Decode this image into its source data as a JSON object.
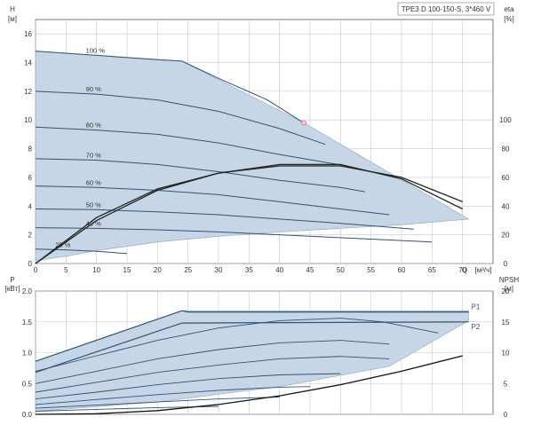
{
  "chart_data": [
    {
      "type": "line",
      "title": "TPE3 D 100-150-S, 3*460 V",
      "ylabel_left": "H",
      "ylabel_left_unit": "[м]",
      "ylabel_right": "eta",
      "ylabel_right_unit": "[%]",
      "xlabel": "Q",
      "xlabel_unit": "[м³/ч]",
      "xlim": [
        0,
        75
      ],
      "ylim_left": [
        0,
        17
      ],
      "ylim_right": [
        0,
        170
      ],
      "x_ticks": [
        0,
        5,
        10,
        15,
        20,
        25,
        30,
        35,
        40,
        45,
        50,
        55,
        60,
        65,
        70
      ],
      "y_ticks_left": [
        0,
        2,
        4,
        6,
        8,
        10,
        12,
        14,
        16
      ],
      "y_ticks_right": [
        0,
        20,
        40,
        60,
        80,
        100
      ],
      "grid": true,
      "operating_envelope": [
        [
          0,
          14.8
        ],
        [
          24,
          14.1
        ],
        [
          44,
          9.8
        ],
        [
          71,
          3.1
        ],
        [
          71,
          3.1
        ],
        [
          60,
          2.7
        ],
        [
          40,
          2.2
        ],
        [
          30,
          1.9
        ],
        [
          20,
          1.5
        ],
        [
          10,
          0.9
        ],
        [
          5,
          0.5
        ],
        [
          0,
          0.2
        ]
      ],
      "speed_curves": [
        {
          "label": "100 %",
          "x": [
            0,
            10,
            20,
            24,
            30,
            38,
            44
          ],
          "y": [
            14.8,
            14.5,
            14.2,
            14.1,
            12.9,
            11.4,
            9.8
          ]
        },
        {
          "label": "90 %",
          "x": [
            0,
            10,
            20,
            30,
            40,
            47.5
          ],
          "y": [
            12.0,
            11.8,
            11.4,
            10.6,
            9.4,
            8.3
          ]
        },
        {
          "label": "80 %",
          "x": [
            0,
            10,
            20,
            30,
            40,
            51
          ],
          "y": [
            9.5,
            9.3,
            9.0,
            8.4,
            7.6,
            6.8
          ]
        },
        {
          "label": "70 %",
          "x": [
            0,
            10,
            20,
            30,
            40,
            50,
            54
          ],
          "y": [
            7.3,
            7.2,
            6.9,
            6.4,
            5.8,
            5.3,
            5.0
          ]
        },
        {
          "label": "60 %",
          "x": [
            0,
            10,
            20,
            30,
            40,
            50,
            58
          ],
          "y": [
            5.4,
            5.3,
            5.1,
            4.8,
            4.3,
            3.8,
            3.4
          ]
        },
        {
          "label": "50 %",
          "x": [
            0,
            10,
            20,
            30,
            40,
            50,
            62
          ],
          "y": [
            3.8,
            3.75,
            3.6,
            3.4,
            3.1,
            2.8,
            2.4
          ]
        },
        {
          "label": "40 %",
          "x": [
            0,
            10,
            20,
            30,
            40,
            50,
            65
          ],
          "y": [
            2.5,
            2.45,
            2.35,
            2.2,
            2.0,
            1.8,
            1.5
          ]
        },
        {
          "label": "25 %",
          "x": [
            0,
            5,
            10,
            15
          ],
          "y": [
            1.0,
            0.95,
            0.85,
            0.7
          ]
        }
      ],
      "efficiency_curves": [
        {
          "name": "eta 100 %",
          "x": [
            0,
            10,
            20,
            30,
            40,
            50,
            60,
            70
          ],
          "y": [
            0,
            32,
            52,
            63,
            68,
            68,
            60,
            43
          ]
        },
        {
          "name": "eta 90 %",
          "x": [
            0,
            10,
            20,
            30,
            40,
            50,
            60,
            70
          ],
          "y": [
            0,
            30,
            51,
            63,
            69,
            69,
            59,
            38
          ]
        }
      ],
      "operating_point": {
        "x": 44,
        "y": 9.8
      }
    },
    {
      "type": "line",
      "ylabel_left": "P",
      "ylabel_left_unit": "[кВт]",
      "ylabel_right": "NPSH",
      "ylabel_right_unit": "[м]",
      "xlim": [
        0,
        75
      ],
      "ylim_left": [
        0,
        2.0
      ],
      "ylim_right": [
        0,
        20
      ],
      "y_ticks_left": [
        0.0,
        0.5,
        1.0,
        1.5,
        2.0
      ],
      "y_ticks_left_labels": [
        "0.0",
        "0.5",
        "1.0",
        "1.5",
        "2.0"
      ],
      "y_ticks_right": [
        0,
        5,
        10,
        15,
        20
      ],
      "grid": true,
      "operating_envelope": [
        [
          0,
          0.86
        ],
        [
          24,
          1.68
        ],
        [
          71,
          1.68
        ],
        [
          71,
          1.52
        ],
        [
          58,
          0.78
        ],
        [
          40,
          0.45
        ],
        [
          20,
          0.2
        ],
        [
          0,
          0.05
        ]
      ],
      "series": [
        {
          "name": "P1",
          "x": [
            0,
            24,
            25,
            71
          ],
          "y": [
            0.86,
            1.68,
            1.66,
            1.66
          ]
        },
        {
          "name": "P2",
          "x": [
            0,
            24,
            71
          ],
          "y": [
            0.68,
            1.48,
            1.5
          ]
        }
      ],
      "power_curves": [
        {
          "x": [
            0,
            10,
            20,
            30,
            40,
            50,
            57,
            66
          ],
          "y": [
            0.7,
            0.95,
            1.2,
            1.4,
            1.52,
            1.56,
            1.5,
            1.32
          ]
        },
        {
          "x": [
            0,
            10,
            20,
            30,
            40,
            50,
            58
          ],
          "y": [
            0.5,
            0.7,
            0.9,
            1.05,
            1.16,
            1.2,
            1.14
          ]
        },
        {
          "x": [
            0,
            10,
            20,
            30,
            40,
            50,
            58
          ],
          "y": [
            0.36,
            0.52,
            0.68,
            0.8,
            0.9,
            0.94,
            0.9
          ]
        },
        {
          "x": [
            0,
            10,
            20,
            30,
            40,
            50
          ],
          "y": [
            0.25,
            0.36,
            0.48,
            0.58,
            0.64,
            0.66
          ]
        },
        {
          "x": [
            0,
            10,
            20,
            30,
            40,
            45
          ],
          "y": [
            0.16,
            0.24,
            0.32,
            0.39,
            0.44,
            0.45
          ]
        },
        {
          "x": [
            0,
            10,
            20,
            30,
            40
          ],
          "y": [
            0.1,
            0.15,
            0.2,
            0.25,
            0.28
          ]
        },
        {
          "x": [
            0,
            10,
            20,
            30
          ],
          "y": [
            0.05,
            0.08,
            0.11,
            0.13
          ]
        }
      ],
      "npsh_curve": {
        "x": [
          0,
          10,
          20,
          30,
          40,
          50,
          60,
          70
        ],
        "y": [
          0.0,
          0.1,
          0.6,
          1.6,
          3.0,
          4.8,
          7.0,
          9.5
        ]
      }
    }
  ]
}
